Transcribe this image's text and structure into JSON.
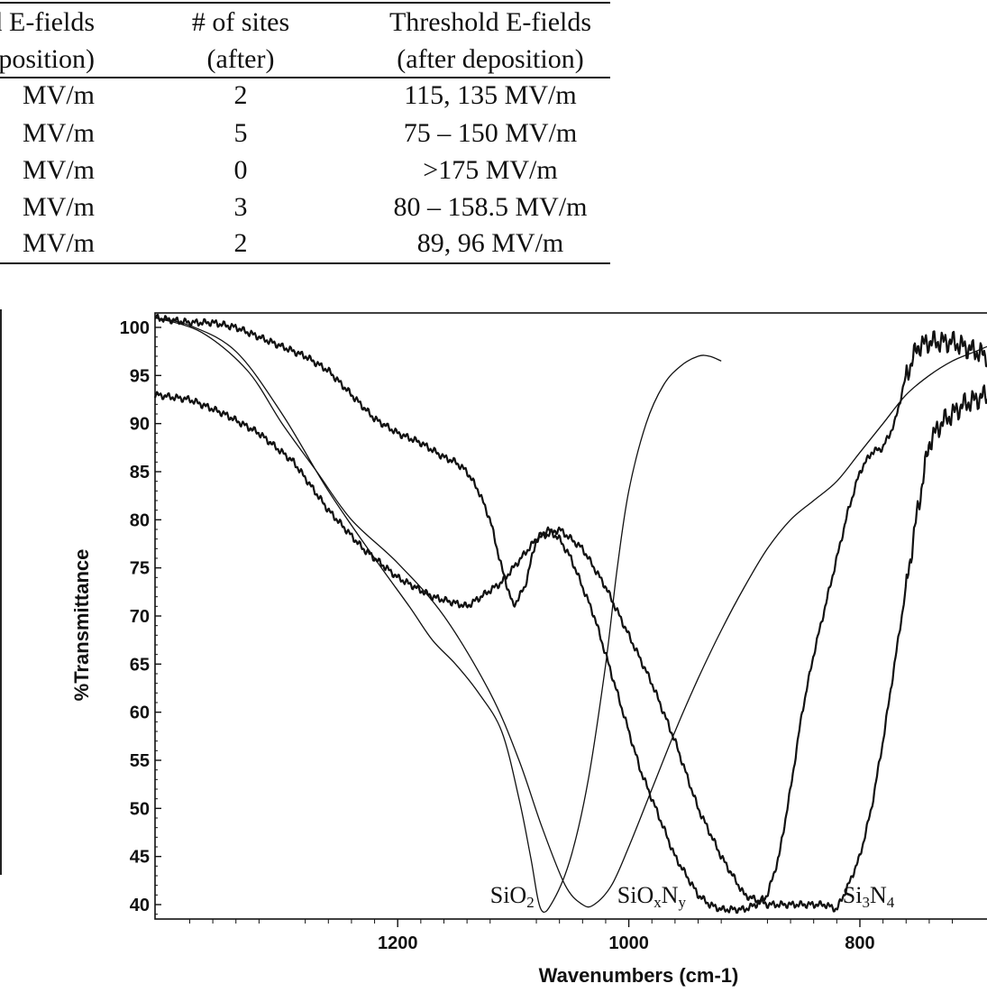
{
  "table": {
    "header_col1": [
      "d E-fields",
      "eposition)"
    ],
    "header_col2": [
      "# of sites",
      "(after)"
    ],
    "header_col3": [
      "Threshold E-fields",
      "(after deposition)"
    ],
    "rows": [
      {
        "c1": "MV/m",
        "c2": "2",
        "c3": "115, 135 MV/m"
      },
      {
        "c1": "MV/m",
        "c2": "5",
        "c3": "75 – 150 MV/m"
      },
      {
        "c1": "MV/m",
        "c2": "0",
        "c3": ">175 MV/m"
      },
      {
        "c1": "MV/m",
        "c2": "3",
        "c3": "80 – 158.5 MV/m"
      },
      {
        "c1": "MV/m",
        "c2": "2",
        "c3": "89, 96 MV/m"
      }
    ]
  },
  "chart_data": {
    "type": "line",
    "title": "",
    "xlabel": "Wavenumbers (cm-1)",
    "ylabel": "%Transmittance",
    "xlim": [
      1410,
      690
    ],
    "ylim": [
      38.5,
      101.5
    ],
    "x_ticks": [
      1200,
      1000,
      800
    ],
    "x_tick_labels": [
      "1200",
      "1000",
      "800"
    ],
    "y_ticks": [
      100,
      95,
      90,
      85,
      80,
      75,
      70,
      65,
      60,
      55,
      50,
      45,
      40
    ],
    "y_tick_labels": [
      "100",
      "95",
      "90",
      "85",
      "80",
      "75",
      "70",
      "65",
      "60",
      "55",
      "50",
      "45",
      "40"
    ],
    "x_reversed": true,
    "grid": false,
    "legend": "none",
    "series": [
      {
        "name": "SiO2",
        "label_parts": [
          [
            "SiO",
            false
          ],
          [
            "2",
            true
          ]
        ],
        "label_x": 1120,
        "label_y": 39.8,
        "noisy": false,
        "x": [
          1410,
          1380,
          1340,
          1300,
          1260,
          1220,
          1190,
          1170,
          1150,
          1130,
          1110,
          1095,
          1085,
          1076,
          1065,
          1050,
          1035,
          1020,
          1010,
          1000,
          985,
          970,
          955,
          940,
          930,
          920
        ],
        "y": [
          101,
          100.2,
          97.5,
          91,
          83,
          76,
          71,
          67.5,
          65,
          62,
          58,
          51,
          45,
          39.5,
          40.5,
          45,
          53,
          65,
          75,
          83,
          90,
          94,
          96,
          97,
          97,
          96.5
        ]
      },
      {
        "name": "SiOxNy",
        "label_parts": [
          [
            "SiO",
            false
          ],
          [
            "x",
            true
          ],
          [
            "N",
            false
          ],
          [
            "y",
            true
          ]
        ],
        "label_x": 1010,
        "label_y": 39.8,
        "noisy": false,
        "x": [
          1410,
          1370,
          1330,
          1300,
          1270,
          1240,
          1200,
          1160,
          1120,
          1095,
          1075,
          1055,
          1040,
          1030,
          1015,
          1000,
          980,
          960,
          940,
          920,
          900,
          880,
          860,
          840,
          820,
          800,
          780,
          760,
          740,
          720,
          700,
          690
        ],
        "y": [
          101,
          99.5,
          95.5,
          90,
          85,
          80,
          75.5,
          70,
          62,
          55,
          48,
          42,
          40,
          40,
          42,
          46,
          52,
          58,
          63.5,
          68.5,
          73,
          77,
          80,
          82,
          84,
          87,
          90,
          93,
          95,
          96.5,
          97.5,
          98
        ]
      },
      {
        "name": "Si3N4",
        "label_parts": [
          [
            "Si",
            false
          ],
          [
            "3",
            true
          ],
          [
            "N",
            false
          ],
          [
            "4",
            true
          ]
        ],
        "label_x": 815,
        "label_y": 39.8,
        "noisy": true,
        "x": [
          1410,
          1380,
          1350,
          1320,
          1290,
          1260,
          1230,
          1200,
          1170,
          1140,
          1110,
          1080,
          1060,
          1040,
          1020,
          1000,
          980,
          960,
          940,
          920,
          900,
          880,
          860,
          840,
          830,
          820,
          810,
          800,
          790,
          780,
          770,
          760,
          750,
          740,
          730,
          720,
          710,
          700,
          690
        ],
        "y": [
          93,
          92.5,
          91,
          89,
          86,
          81,
          77,
          74,
          72,
          71,
          73.5,
          78,
          79,
          77,
          73,
          68,
          63,
          57,
          50,
          45,
          41,
          40,
          40,
          40,
          40,
          39.5,
          42,
          45,
          50,
          57,
          65,
          73,
          81,
          88,
          90,
          91,
          92,
          92.5,
          93
        ]
      },
      {
        "name": "",
        "label_parts": [],
        "noisy": true,
        "x": [
          1410,
          1380,
          1360,
          1340,
          1320,
          1300,
          1280,
          1260,
          1240,
          1220,
          1200,
          1180,
          1160,
          1150,
          1140,
          1130,
          1120,
          1110,
          1100,
          1090,
          1080,
          1070,
          1060,
          1050,
          1040,
          1030,
          1020,
          1010,
          1000,
          990,
          980,
          970,
          960,
          950,
          940,
          930,
          920,
          910,
          900,
          890,
          880,
          870,
          860,
          850,
          840,
          830,
          820,
          810,
          800,
          790,
          780,
          770,
          760,
          750,
          740,
          730,
          720,
          710,
          700,
          690
        ],
        "y": [
          101,
          100.5,
          100.5,
          100,
          99,
          98,
          97,
          95.5,
          93,
          90.5,
          89,
          88,
          86.5,
          86,
          85,
          83,
          80,
          75,
          71,
          73,
          78,
          79,
          78,
          76,
          73,
          70,
          66,
          62,
          58,
          54,
          51,
          48,
          45,
          43,
          41,
          40,
          39.5,
          39.5,
          39.5,
          40,
          41,
          45,
          52,
          60,
          66,
          71,
          76,
          81,
          85,
          87,
          87.5,
          90,
          95,
          98,
          98.5,
          98.5,
          98.5,
          98,
          97.5,
          97
        ]
      }
    ]
  }
}
